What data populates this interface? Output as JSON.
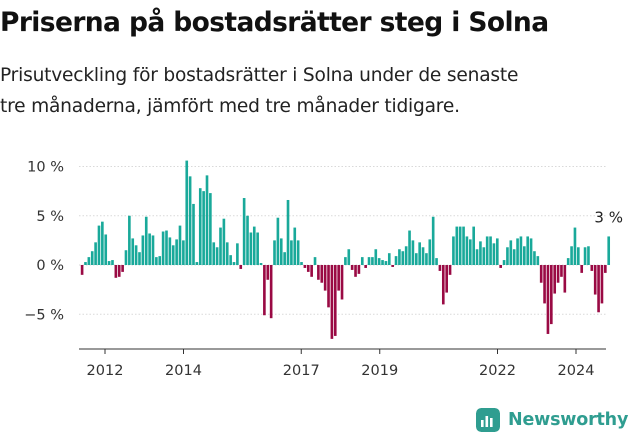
{
  "title": "Priserna på bostadsrätter steg i Solna",
  "subtitle_lines": [
    "Prisutveckling för bostadsrätter i Solna under de senaste",
    "tre månaderna, jämfört med tre månader tidigare."
  ],
  "brand": {
    "name": "Newsworthy",
    "icon": "newsworthy-logo-icon"
  },
  "colors": {
    "positive": "#19a99a",
    "negative": "#9a0a44",
    "axis": "#333333",
    "brand": "#2f9d90"
  },
  "chart_data": {
    "type": "bar",
    "unit": "%",
    "ylim": [
      -8.5,
      11.5
    ],
    "y_ticks": [
      {
        "value": 10,
        "label": "10 %"
      },
      {
        "value": 5,
        "label": "5 %"
      },
      {
        "value": 0,
        "label": "0 %"
      },
      {
        "value": -5,
        "label": "−5 %"
      }
    ],
    "x_ticks": [
      {
        "year": 2012,
        "label": "2012"
      },
      {
        "year": 2014,
        "label": "2014"
      },
      {
        "year": 2017,
        "label": "2017"
      },
      {
        "year": 2019,
        "label": "2019"
      },
      {
        "year": 2022,
        "label": "2022"
      },
      {
        "year": 2024,
        "label": "2024"
      }
    ],
    "x_start": "2011-06",
    "x_end": "2024-11",
    "last_value_label": "3 %",
    "series": [
      {
        "values": [
          -1.0,
          0.3,
          0.8,
          1.4,
          2.3,
          4.0,
          4.4,
          3.1,
          0.4,
          0.5,
          -1.3,
          -1.2,
          -0.7,
          1.5,
          5.0,
          2.7,
          2.0,
          1.3,
          3.0,
          4.9,
          3.2,
          3.0,
          0.8,
          0.9,
          3.4,
          3.5,
          2.8,
          2.0,
          2.6,
          4.0,
          2.5,
          10.6,
          9.0,
          6.2,
          0.3,
          7.8,
          7.5,
          9.1,
          7.3,
          2.3,
          1.8,
          3.8,
          4.7,
          2.3,
          1.0,
          0.3,
          2.2,
          -0.4,
          6.8,
          5.0,
          3.3,
          3.9,
          3.3,
          0.2,
          -5.1,
          -1.5,
          -5.4,
          2.5,
          4.8,
          2.7,
          1.3,
          6.6,
          2.5,
          3.8,
          2.5,
          0.3,
          -0.3,
          -0.7,
          -1.2,
          0.8,
          -1.5,
          -1.8,
          -2.6,
          -4.3,
          -7.5,
          -7.2,
          -2.6,
          -3.5,
          0.8,
          1.6,
          -0.5,
          -1.2,
          -0.9,
          0.8,
          -0.3,
          0.8,
          0.8,
          1.6,
          0.7,
          0.5,
          0.4,
          1.2,
          -0.2,
          0.9,
          1.6,
          1.4,
          1.9,
          3.5,
          2.5,
          1.2,
          2.3,
          1.8,
          1.2,
          2.6,
          4.9,
          0.7,
          -0.6,
          -4.0,
          -2.8,
          -1.0,
          2.9,
          3.9,
          3.9,
          3.9,
          2.9,
          2.6,
          3.9,
          1.6,
          2.4,
          1.8,
          2.9,
          2.9,
          2.2,
          2.7,
          -0.3,
          0.5,
          1.8,
          2.5,
          1.6,
          2.7,
          2.9,
          1.9,
          2.9,
          2.7,
          1.4,
          0.9,
          -1.8,
          -3.9,
          -7.0,
          -6.0,
          -2.9,
          -1.8,
          -1.2,
          -2.8,
          0.7,
          1.9,
          3.8,
          1.8,
          -0.8,
          1.8,
          1.9,
          -0.6,
          -3.0,
          -4.8,
          -3.9,
          -0.8,
          2.9
        ]
      }
    ]
  }
}
